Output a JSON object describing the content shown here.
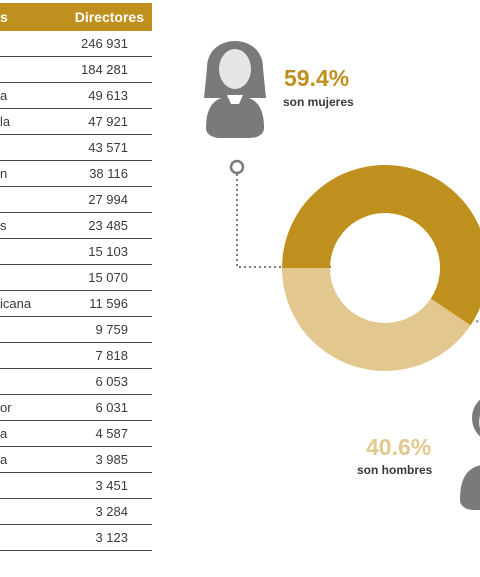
{
  "table": {
    "headers": [
      "s",
      "Directores"
    ],
    "rows": [
      [
        "",
        "246 931"
      ],
      [
        "",
        "184 281"
      ],
      [
        "a",
        "49 613"
      ],
      [
        "la",
        "47 921"
      ],
      [
        "",
        "43 571"
      ],
      [
        "n",
        "38 116"
      ],
      [
        "",
        "27 994"
      ],
      [
        "s",
        "23 485"
      ],
      [
        "",
        "15 103"
      ],
      [
        "",
        "15 070"
      ],
      [
        "icana",
        "11 596"
      ],
      [
        "",
        "9 759"
      ],
      [
        "",
        "7 818"
      ],
      [
        "",
        "6 053"
      ],
      [
        "or",
        "6 031"
      ],
      [
        "a",
        "4 587"
      ],
      [
        "a",
        "3 985"
      ],
      [
        "",
        "3 451"
      ],
      [
        "",
        "3 284"
      ],
      [
        "",
        "3 123"
      ]
    ]
  },
  "chart_data": {
    "type": "pie",
    "variant": "donut",
    "slices": [
      {
        "label": "son mujeres",
        "value": 59.4,
        "display": "59.4%",
        "color": "#c0901e"
      },
      {
        "label": "son hombres",
        "value": 40.6,
        "display": "40.6%",
        "color": "#e2c88e"
      }
    ]
  },
  "colors": {
    "accent": "#c0901e",
    "accent_light": "#e2c88e",
    "person_gray": "#7a7a7a",
    "dotted": "#7a7a7a"
  }
}
